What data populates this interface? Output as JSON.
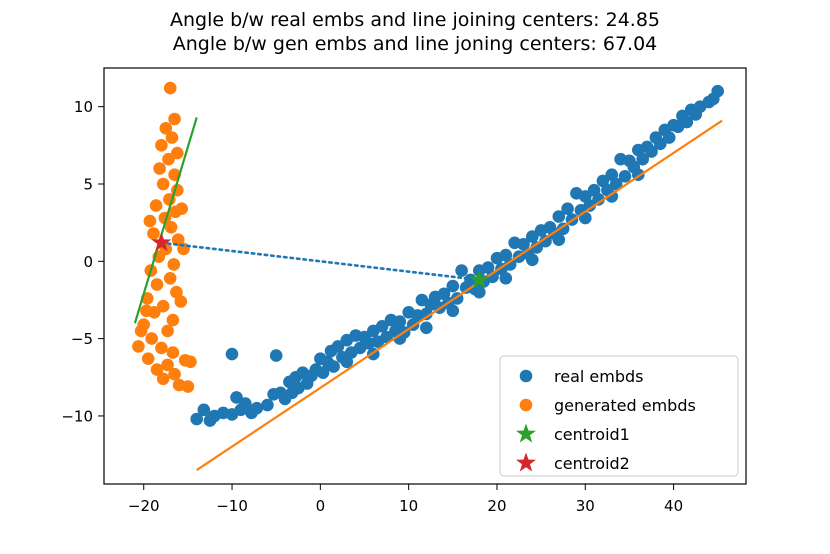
{
  "chart_data": {
    "type": "scatter",
    "title_lines": [
      "Angle b/w real embs and line joining centers: 24.85",
      "Angle b/w gen embs and line joning centers: 67.04"
    ],
    "xlabel": "",
    "ylabel": "",
    "xlim": [
      -24.5,
      48.2
    ],
    "ylim": [
      -14.4,
      12.5
    ],
    "xticks": [
      -20,
      -10,
      0,
      10,
      20,
      30,
      40
    ],
    "yticks": [
      -10,
      -5,
      0,
      5,
      10
    ],
    "xtick_labels": [
      "−20",
      "−10",
      "0",
      "10",
      "20",
      "30",
      "40"
    ],
    "ytick_labels": [
      "−10",
      "−5",
      "0",
      "5",
      "10"
    ],
    "grid": false,
    "legend_position": "lower-right",
    "series": [
      {
        "name": "real embds",
        "kind": "scatter",
        "color": "#1f77b4",
        "marker": "circle",
        "description_points": "dense elongated band from about (-7, -9) to (45, 11)",
        "points": [
          [
            -14,
            -10.2
          ],
          [
            -13.2,
            -9.6
          ],
          [
            -12.5,
            -10.3
          ],
          [
            -12,
            -10
          ],
          [
            -11,
            -9.8
          ],
          [
            -10,
            -9.9
          ],
          [
            -10,
            -6
          ],
          [
            -9.5,
            -8.8
          ],
          [
            -9,
            -9.6
          ],
          [
            -8.5,
            -9.2
          ],
          [
            -7.8,
            -9.8
          ],
          [
            -7.2,
            -9.5
          ],
          [
            -6,
            -9.3
          ],
          [
            -5.3,
            -8.6
          ],
          [
            -5,
            -6.1
          ],
          [
            -4.5,
            -8.5
          ],
          [
            -4,
            -8.9
          ],
          [
            -3.5,
            -7.8
          ],
          [
            -3.2,
            -8.5
          ],
          [
            -2.8,
            -7.5
          ],
          [
            -2.5,
            -8.2
          ],
          [
            -2,
            -7.2
          ],
          [
            -1.5,
            -7.9
          ],
          [
            -1,
            -7.4
          ],
          [
            -0.5,
            -7
          ],
          [
            0,
            -6.3
          ],
          [
            0.3,
            -7.2
          ],
          [
            0.8,
            -6.5
          ],
          [
            1.2,
            -5.8
          ],
          [
            1.5,
            -6.8
          ],
          [
            2,
            -5.5
          ],
          [
            2.5,
            -6.2
          ],
          [
            3,
            -5.1
          ],
          [
            3.5,
            -5.9
          ],
          [
            4,
            -4.8
          ],
          [
            4.5,
            -5.6
          ],
          [
            5,
            -4.9
          ],
          [
            5.5,
            -5.3
          ],
          [
            6,
            -4.5
          ],
          [
            6.5,
            -5.2
          ],
          [
            7,
            -4.2
          ],
          [
            7.5,
            -4.9
          ],
          [
            8,
            -3.8
          ],
          [
            8.5,
            -4.5
          ],
          [
            9,
            -3.9
          ],
          [
            9.5,
            -4.6
          ],
          [
            10,
            -3.3
          ],
          [
            10.5,
            -4.1
          ],
          [
            11,
            -3.5
          ],
          [
            11.5,
            -2.5
          ],
          [
            12,
            -3.4
          ],
          [
            12.5,
            -2.8
          ],
          [
            13,
            -2.3
          ],
          [
            13.5,
            -3
          ],
          [
            14,
            -2.1
          ],
          [
            14.5,
            -2.7
          ],
          [
            15,
            -1.6
          ],
          [
            15.5,
            -2.4
          ],
          [
            16,
            -0.6
          ],
          [
            16.5,
            -1.7
          ],
          [
            17,
            -1.2
          ],
          [
            17.5,
            -1.8
          ],
          [
            18,
            -0.6
          ],
          [
            18.5,
            -1.3
          ],
          [
            19,
            -0.4
          ],
          [
            19.5,
            -1
          ],
          [
            20,
            0.2
          ],
          [
            20.5,
            -0.5
          ],
          [
            21,
            0.4
          ],
          [
            21.5,
            -0.2
          ],
          [
            22,
            1.2
          ],
          [
            22.5,
            0.3
          ],
          [
            23,
            1.1
          ],
          [
            23.5,
            0.5
          ],
          [
            24,
            1.6
          ],
          [
            24.5,
            0.9
          ],
          [
            25,
            2
          ],
          [
            25.5,
            1.3
          ],
          [
            26,
            2.2
          ],
          [
            26.5,
            1.8
          ],
          [
            27,
            2.9
          ],
          [
            27.5,
            2.1
          ],
          [
            28,
            3.4
          ],
          [
            28.5,
            2.7
          ],
          [
            29,
            4.4
          ],
          [
            29.5,
            3.3
          ],
          [
            30,
            4.2
          ],
          [
            30.5,
            3.6
          ],
          [
            31,
            4.6
          ],
          [
            31.5,
            4
          ],
          [
            32,
            5.2
          ],
          [
            32.5,
            4.6
          ],
          [
            33,
            5.6
          ],
          [
            33.5,
            5
          ],
          [
            34,
            6.6
          ],
          [
            34.5,
            5.5
          ],
          [
            35,
            6.5
          ],
          [
            35.5,
            6.1
          ],
          [
            36,
            7.2
          ],
          [
            36.5,
            6.6
          ],
          [
            37,
            7.4
          ],
          [
            37.5,
            7.1
          ],
          [
            38,
            8
          ],
          [
            38.5,
            7.6
          ],
          [
            39,
            8.5
          ],
          [
            39.5,
            8
          ],
          [
            40,
            8.8
          ],
          [
            40.5,
            8.7
          ],
          [
            41,
            9.4
          ],
          [
            41.5,
            9
          ],
          [
            42,
            9.8
          ],
          [
            42.5,
            9.5
          ],
          [
            43,
            10
          ],
          [
            44,
            10.3
          ],
          [
            44.5,
            10.5
          ],
          [
            45,
            11
          ],
          [
            3,
            -6.5
          ],
          [
            6,
            -6
          ],
          [
            9,
            -5
          ],
          [
            12,
            -4.3
          ],
          [
            15,
            -3.2
          ],
          [
            18,
            -2
          ],
          [
            21,
            -1.1
          ],
          [
            24,
            0.1
          ],
          [
            27,
            1.4
          ],
          [
            30,
            2.8
          ],
          [
            33,
            4.2
          ],
          [
            36,
            5.6
          ]
        ]
      },
      {
        "name": "generated embds",
        "kind": "scatter",
        "color": "#ff7f0e",
        "marker": "circle",
        "description_points": "narrow vertical band around x ≈ -21..-15, y ≈ -7..11",
        "points": [
          [
            -17,
            11.2
          ],
          [
            -16.5,
            9.2
          ],
          [
            -17.5,
            8.6
          ],
          [
            -16.8,
            8
          ],
          [
            -18,
            7.5
          ],
          [
            -16.2,
            7
          ],
          [
            -17.2,
            6.6
          ],
          [
            -18.2,
            6
          ],
          [
            -16.5,
            5.6
          ],
          [
            -17.8,
            5
          ],
          [
            -16.2,
            4.6
          ],
          [
            -17.1,
            4
          ],
          [
            -18.6,
            3.6
          ],
          [
            -16.4,
            3.2
          ],
          [
            -17.6,
            2.8
          ],
          [
            -16.9,
            2.2
          ],
          [
            -18.9,
            1.8
          ],
          [
            -16.1,
            1.4
          ],
          [
            -17.5,
            0.8
          ],
          [
            -18.3,
            0.3
          ],
          [
            -16.6,
            -0.2
          ],
          [
            -19.2,
            -0.6
          ],
          [
            -17,
            -1.1
          ],
          [
            -18.5,
            -1.5
          ],
          [
            -16.3,
            -2
          ],
          [
            -19.6,
            -2.4
          ],
          [
            -17.8,
            -2.9
          ],
          [
            -18.8,
            -3.3
          ],
          [
            -16.7,
            -3.8
          ],
          [
            -20,
            -4.1
          ],
          [
            -17.3,
            -4.5
          ],
          [
            -19.1,
            -5
          ],
          [
            -20.6,
            -5.5
          ],
          [
            -18,
            -5.6
          ],
          [
            -16.7,
            -5.9
          ],
          [
            -19.5,
            -6.3
          ],
          [
            -17.3,
            -6.7
          ],
          [
            -18.5,
            -7
          ],
          [
            -16.5,
            -7.3
          ],
          [
            -17.8,
            -7.6
          ],
          [
            -15.3,
            -6.4
          ],
          [
            -14.7,
            -6.5
          ],
          [
            -16,
            -8
          ],
          [
            -15,
            -8.1
          ],
          [
            -20.3,
            -4.5
          ],
          [
            -15.8,
            -2.6
          ],
          [
            -15.5,
            0.8
          ],
          [
            -15.7,
            3.4
          ],
          [
            -19.3,
            2.6
          ],
          [
            -19.7,
            -3.2
          ]
        ]
      },
      {
        "name": "centroid1",
        "kind": "marker",
        "color": "#2ca02c",
        "marker": "star",
        "points": [
          [
            18,
            -1.2
          ]
        ]
      },
      {
        "name": "centroid2",
        "kind": "marker",
        "color": "#d62728",
        "marker": "star",
        "points": [
          [
            -18,
            1.2
          ]
        ]
      }
    ],
    "lines": [
      {
        "role": "fit line through real embds",
        "color": "#ff7f0e",
        "style": "solid",
        "points": [
          [
            -14,
            -13.5
          ],
          [
            45.5,
            9.1
          ]
        ]
      },
      {
        "role": "fit line through generated embds",
        "color": "#2ca02c",
        "style": "solid",
        "points": [
          [
            -21,
            -4
          ],
          [
            -14,
            9.3
          ]
        ]
      },
      {
        "role": "line joining centers",
        "color": "#1f77b4",
        "style": "dotted",
        "points": [
          [
            -18,
            1.2
          ],
          [
            18,
            -1.2
          ]
        ]
      }
    ],
    "legend": [
      {
        "label": "real embds",
        "color": "#1f77b4",
        "marker": "circle"
      },
      {
        "label": "generated embds",
        "color": "#ff7f0e",
        "marker": "circle"
      },
      {
        "label": "centroid1",
        "color": "#2ca02c",
        "marker": "star"
      },
      {
        "label": "centroid2",
        "color": "#d62728",
        "marker": "star"
      }
    ]
  }
}
